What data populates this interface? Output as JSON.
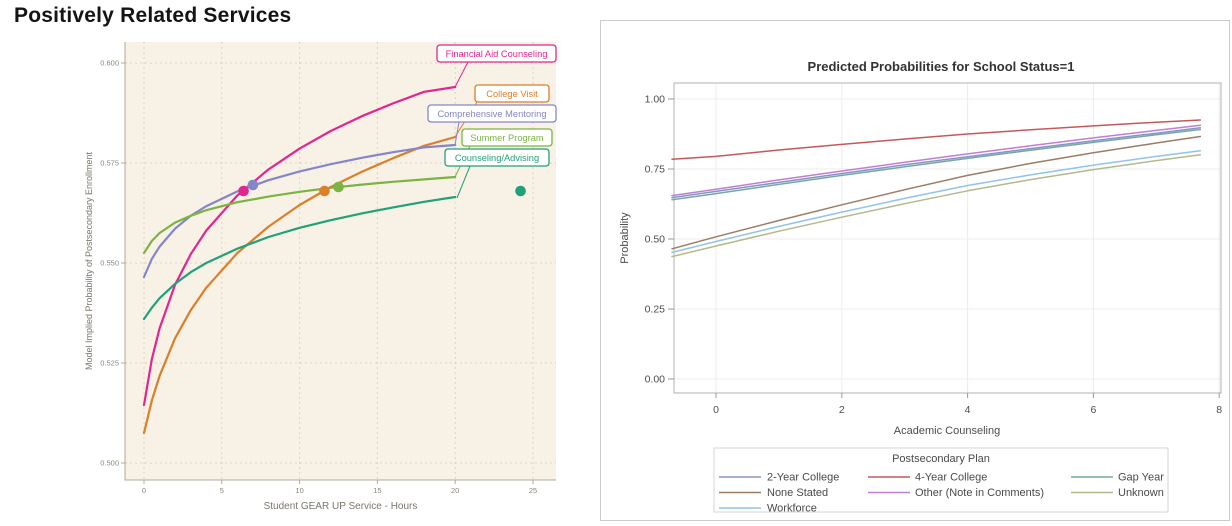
{
  "page": {
    "title": "Positively Related Services"
  },
  "chart_data": [
    {
      "id": "gearup-services",
      "type": "line",
      "title": "",
      "xlabel": "Student GEAR UP Service - Hours",
      "ylabel": "Model Implied Probability of Postsecondary Enrollment",
      "xlim": [
        -1.2,
        26.5
      ],
      "ylim": [
        0.4955,
        0.6053
      ],
      "xticks": [
        "0",
        "5",
        "10",
        "15",
        "20",
        "25"
      ],
      "xtick_values": [
        0,
        5,
        10,
        15,
        20,
        25
      ],
      "yticks": [
        "0.600",
        "0.575",
        "0.550",
        "0.525",
        "0.500"
      ],
      "ytick_values": [
        0.6,
        0.575,
        0.55,
        0.525,
        0.5
      ],
      "grid": "dotted",
      "legend_position": "inline-labels",
      "plot_background": "#f7f1e6",
      "series": [
        {
          "name": "Financial Aid Counseling",
          "color": "#e2268f",
          "x": [
            0,
            0.5,
            1,
            2,
            3,
            4,
            6,
            8,
            10,
            12,
            14,
            16,
            18,
            20
          ],
          "y": [
            0.5145,
            0.5259,
            0.5337,
            0.5446,
            0.5522,
            0.5581,
            0.5669,
            0.5734,
            0.5786,
            0.583,
            0.5867,
            0.5899,
            0.5928,
            0.594
          ]
        },
        {
          "name": "College Visit",
          "color": "#dd7e28",
          "x": [
            0,
            0.5,
            1,
            2,
            3,
            4,
            6,
            8,
            10,
            12,
            14,
            16,
            18,
            20
          ],
          "y": [
            0.5075,
            0.5156,
            0.5218,
            0.5312,
            0.5382,
            0.5438,
            0.5525,
            0.5591,
            0.5645,
            0.569,
            0.5728,
            0.5762,
            0.5793,
            0.5815
          ]
        },
        {
          "name": "Comprehensive Mentoring",
          "color": "#8486c9",
          "x": [
            0,
            0.5,
            1,
            2,
            3,
            4,
            6,
            8,
            10,
            12,
            14,
            16,
            18,
            20
          ],
          "y": [
            0.5465,
            0.551,
            0.5541,
            0.5586,
            0.5618,
            0.5642,
            0.5679,
            0.5707,
            0.5729,
            0.5747,
            0.5763,
            0.5777,
            0.5789,
            0.5795
          ]
        },
        {
          "name": "Summer Program",
          "color": "#7cb342",
          "x": [
            0,
            0.5,
            1,
            2,
            3,
            4,
            6,
            8,
            10,
            12,
            14,
            16,
            18,
            20
          ],
          "y": [
            0.5525,
            0.5555,
            0.5575,
            0.5601,
            0.5618,
            0.5632,
            0.5652,
            0.5666,
            0.5678,
            0.5688,
            0.5696,
            0.5703,
            0.5709,
            0.5715
          ]
        },
        {
          "name": "Counseling/Advising",
          "color": "#21a179",
          "x": [
            0,
            0.5,
            1,
            2,
            3,
            4,
            6,
            8,
            10,
            12,
            14,
            16,
            18,
            20
          ],
          "y": [
            0.536,
            0.5388,
            0.5412,
            0.5448,
            0.5477,
            0.55,
            0.5536,
            0.5565,
            0.5588,
            0.5607,
            0.5624,
            0.5639,
            0.5653,
            0.5665
          ]
        }
      ],
      "markers": [
        {
          "series": "Financial Aid Counseling",
          "x": 6.4,
          "y": 0.568
        },
        {
          "series": "Comprehensive Mentoring",
          "x": 7.0,
          "y": 0.5695
        },
        {
          "series": "College Visit",
          "x": 11.6,
          "y": 0.568
        },
        {
          "series": "Summer Program",
          "x": 12.5,
          "y": 0.569
        },
        {
          "series": "Counseling/Advising",
          "x": 24.2,
          "y": 0.568
        }
      ]
    },
    {
      "id": "predicted-probabilities",
      "type": "line",
      "title": "Predicted Probabilities for School Status=1",
      "xlabel": "Academic Counseling",
      "ylabel": "Probability",
      "xlim": [
        -0.7,
        8.06
      ],
      "ylim": [
        -0.05,
        1.07
      ],
      "xticks": [
        "0",
        "2",
        "4",
        "6",
        "8"
      ],
      "xtick_values": [
        0,
        2,
        4,
        6,
        8
      ],
      "yticks": [
        "1.00",
        "0.75",
        "0.50",
        "0.25",
        "0.00"
      ],
      "ytick_values": [
        1.0,
        0.75,
        0.5,
        0.25,
        0.0
      ],
      "grid": "solid",
      "plot_background": "#ffffff",
      "x_shared": [
        -0.7,
        0,
        1,
        2,
        3,
        4,
        5,
        6,
        7,
        7.7
      ],
      "series": [
        {
          "name": "2-Year College",
          "color": "#8a93c8",
          "y": [
            0.648,
            0.67,
            0.702,
            0.734,
            0.765,
            0.794,
            0.823,
            0.851,
            0.878,
            0.897
          ]
        },
        {
          "name": "4-Year College",
          "color": "#c4595c",
          "y": [
            0.785,
            0.795,
            0.818,
            0.838,
            0.857,
            0.875,
            0.89,
            0.904,
            0.917,
            0.925
          ]
        },
        {
          "name": "None Stated",
          "color": "#9b7d64",
          "y": [
            0.465,
            0.508,
            0.566,
            0.622,
            0.676,
            0.727,
            0.77,
            0.808,
            0.843,
            0.866
          ]
        },
        {
          "name": "Other (Note in Comments)",
          "color": "#bf7fd4",
          "y": [
            0.655,
            0.678,
            0.711,
            0.743,
            0.774,
            0.804,
            0.833,
            0.861,
            0.888,
            0.906
          ]
        },
        {
          "name": "Workforce",
          "color": "#90c4ea",
          "y": [
            0.452,
            0.491,
            0.545,
            0.596,
            0.645,
            0.691,
            0.729,
            0.764,
            0.795,
            0.815
          ]
        },
        {
          "name": "Gap Year",
          "color": "#74a99e",
          "y": [
            0.64,
            0.662,
            0.695,
            0.727,
            0.758,
            0.788,
            0.817,
            0.845,
            0.872,
            0.891
          ]
        },
        {
          "name": "Unknown",
          "color": "#b4b98c",
          "y": [
            0.437,
            0.475,
            0.528,
            0.578,
            0.626,
            0.672,
            0.712,
            0.748,
            0.78,
            0.801
          ]
        }
      ],
      "legend": {
        "title": "Postsecondary Plan",
        "columns": [
          [
            "2-Year College",
            "None Stated",
            "Workforce"
          ],
          [
            "4-Year College",
            "Other (Note in Comments)"
          ],
          [
            "Gap Year",
            "Unknown"
          ]
        ]
      }
    }
  ]
}
